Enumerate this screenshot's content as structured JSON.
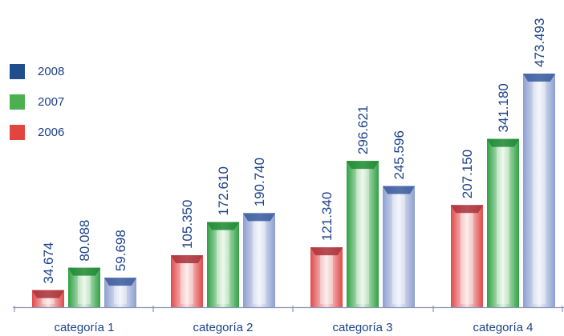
{
  "chart_data": {
    "type": "bar",
    "categories": [
      "categoría 1",
      "categoría 2",
      "categoría 3",
      "categoría 4"
    ],
    "series": [
      {
        "name": "2006",
        "color": "#e2453e",
        "values": [
          34.674,
          105.35,
          121.34,
          207.15
        ],
        "labels": [
          "34.674",
          "105.350",
          "121.340",
          "207.150"
        ]
      },
      {
        "name": "2007",
        "color": "#4caf50",
        "values": [
          80.088,
          172.61,
          296.621,
          341.18
        ],
        "labels": [
          "80.088",
          "172.610",
          "296.621",
          "341.180"
        ]
      },
      {
        "name": "2008",
        "color": "#1f4e8c",
        "values": [
          59.698,
          190.74,
          245.596,
          473.493
        ],
        "labels": [
          "59.698",
          "190.740",
          "245.596",
          "473.493"
        ]
      }
    ],
    "legend_order": [
      "2008",
      "2007",
      "2006"
    ],
    "ylim": [
      0,
      480
    ],
    "grid": false,
    "legend_position": "left"
  }
}
